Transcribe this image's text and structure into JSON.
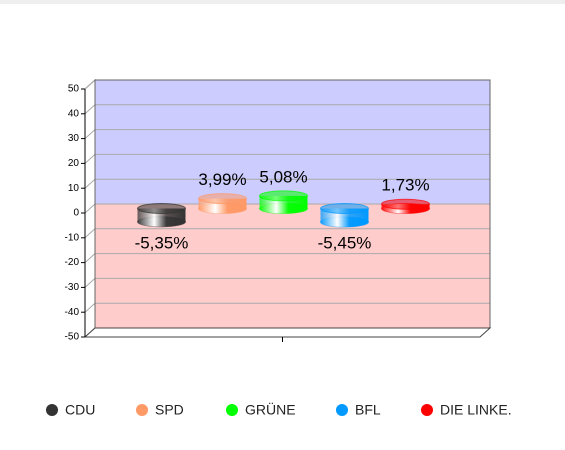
{
  "chart_data": {
    "type": "bar",
    "categories": [
      null
    ],
    "series": [
      {
        "name": "CDU",
        "color": "#333333",
        "values": [
          -5.35
        ],
        "value_labels": [
          "-5,35%"
        ]
      },
      {
        "name": "SPD",
        "color": "#ff9966",
        "values": [
          3.99
        ],
        "value_labels": [
          "3,99%"
        ]
      },
      {
        "name": "GRÜNE",
        "color": "#00ff00",
        "values": [
          5.08
        ],
        "value_labels": [
          "5,08%"
        ]
      },
      {
        "name": "BFL",
        "color": "#0099ff",
        "values": [
          -5.45
        ],
        "value_labels": [
          "-5,45%"
        ]
      },
      {
        "name": "DIE LINKE.",
        "color": "#ff0000",
        "values": [
          1.73
        ],
        "value_labels": [
          "1,73%"
        ]
      }
    ],
    "ylim": [
      -50,
      50
    ],
    "yticks": [
      -50,
      -40,
      -30,
      -20,
      -10,
      0,
      10,
      20,
      30,
      40,
      50
    ],
    "grid": true,
    "legend": "bottom"
  }
}
